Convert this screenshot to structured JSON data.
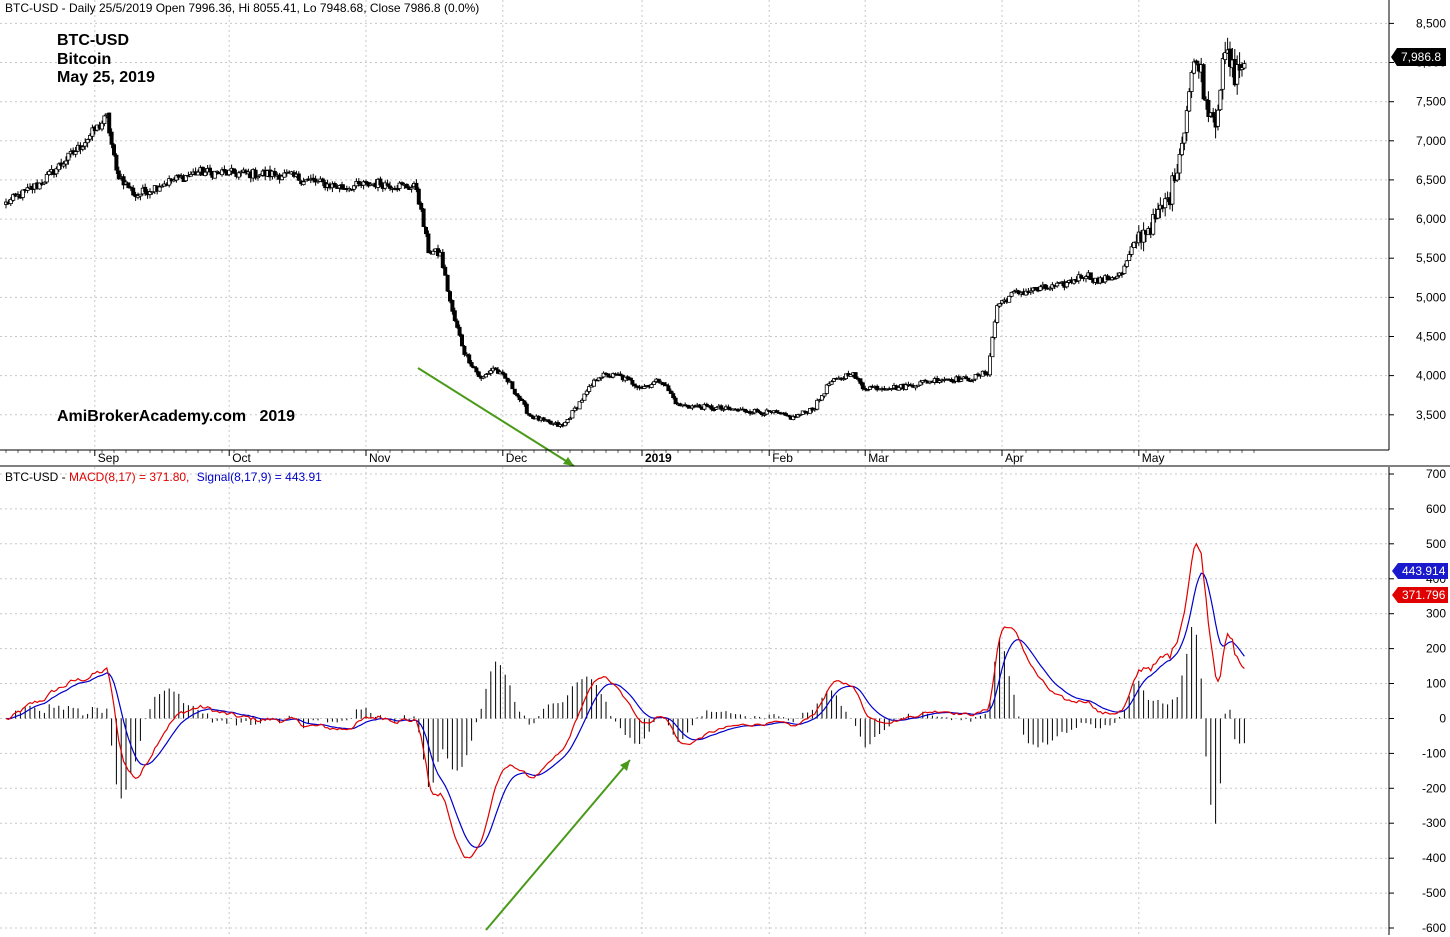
{
  "price_panel": {
    "header": "BTC-USD - Daily 25/5/2019 Open 7996.36, Hi 8055.41, Lo 7948.68, Close 7986.8 (0.0%)",
    "annotation_lines": [
      "BTC-USD",
      "Bitcoin",
      "May 25, 2019"
    ],
    "watermark": "AmiBrokerAcademy.com   2019",
    "last_price_badge": "7,986.8"
  },
  "macd_panel": {
    "header_prefix": "BTC-USD - ",
    "header_macd": "MACD(8,17) = 371.80,",
    "header_signal": "Signal(8,17,9) = 443.91",
    "signal_badge": "443.914",
    "macd_badge": "371.796"
  },
  "colors": {
    "macd": "#e00000",
    "signal": "#0000cc",
    "annotation": "#e03030",
    "trendline": "#4a9a1a",
    "badge_price": "#000000"
  },
  "chart_data": [
    {
      "type": "candlestick",
      "title": "BTC-USD - Daily 25/5/2019 Open 7996.36, Hi 8055.41, Lo 7948.68, Close 7986.8 (0.0%)",
      "x_labels": [
        "Sep",
        "Oct",
        "Nov",
        "Dec",
        "2019",
        "Feb",
        "Mar",
        "Apr",
        "May"
      ],
      "y_ticks": [
        3500,
        4000,
        4500,
        5000,
        5500,
        6000,
        6500,
        7000,
        7500,
        8000,
        8500
      ],
      "y_tick_labels": [
        "3,500",
        "4,000",
        "4,500",
        "5,000",
        "5,500",
        "6,000",
        "6,500",
        "7,000",
        "7,500",
        "8,000",
        "8,500"
      ],
      "ylim": [
        3050,
        8620
      ],
      "last_close": 7986.8,
      "close_waypoints": [
        [
          0,
          6200
        ],
        [
          14,
          6450
        ],
        [
          30,
          6900
        ],
        [
          42,
          7300
        ],
        [
          46,
          6600
        ],
        [
          54,
          6300
        ],
        [
          65,
          6450
        ],
        [
          80,
          6600
        ],
        [
          100,
          6580
        ],
        [
          115,
          6570
        ],
        [
          125,
          6500
        ],
        [
          140,
          6400
        ],
        [
          155,
          6460
        ],
        [
          171,
          6400
        ],
        [
          176,
          5600
        ],
        [
          181,
          5550
        ],
        [
          186,
          4800
        ],
        [
          191,
          4300
        ],
        [
          198,
          3950
        ],
        [
          203,
          4100
        ],
        [
          210,
          3900
        ],
        [
          218,
          3500
        ],
        [
          225,
          3400
        ],
        [
          232,
          3350
        ],
        [
          240,
          3700
        ],
        [
          247,
          4000
        ],
        [
          255,
          4000
        ],
        [
          265,
          3850
        ],
        [
          273,
          3950
        ],
        [
          280,
          3620
        ],
        [
          290,
          3600
        ],
        [
          300,
          3570
        ],
        [
          310,
          3550
        ],
        [
          320,
          3520
        ],
        [
          328,
          3460
        ],
        [
          337,
          3600
        ],
        [
          343,
          3900
        ],
        [
          348,
          3960
        ],
        [
          352,
          4050
        ],
        [
          357,
          3850
        ],
        [
          372,
          3850
        ],
        [
          380,
          3900
        ],
        [
          390,
          3960
        ],
        [
          400,
          3950
        ],
        [
          405,
          3990
        ],
        [
          409,
          4050
        ],
        [
          413,
          4900
        ],
        [
          420,
          5050
        ],
        [
          430,
          5100
        ],
        [
          440,
          5150
        ],
        [
          450,
          5300
        ],
        [
          455,
          5200
        ],
        [
          465,
          5300
        ],
        [
          471,
          5750
        ],
        [
          478,
          5950
        ],
        [
          485,
          6300
        ],
        [
          490,
          7000
        ],
        [
          494,
          7850
        ],
        [
          497,
          8050
        ],
        [
          500,
          7500
        ],
        [
          504,
          7300
        ],
        [
          508,
          8100
        ],
        [
          512,
          7850
        ],
        [
          516,
          7990
        ]
      ],
      "annotations": [
        "BTC-USD",
        "Bitcoin",
        "May 25, 2019",
        "AmiBrokerAcademy.com   2019"
      ]
    },
    {
      "type": "line",
      "title": "BTC-USD - MACD(8,17) = 371.80, Signal(8,17,9) = 443.91",
      "y_ticks": [
        -600,
        -500,
        -400,
        -300,
        -200,
        -100,
        0,
        100,
        200,
        300,
        400,
        500,
        600,
        700
      ],
      "ylim": [
        -620,
        720
      ],
      "series": [
        {
          "name": "MACD(8,17)",
          "last_value": 371.8
        },
        {
          "name": "Signal(8,17,9)",
          "last_value": 443.91
        },
        {
          "name": "Histogram"
        }
      ]
    }
  ]
}
